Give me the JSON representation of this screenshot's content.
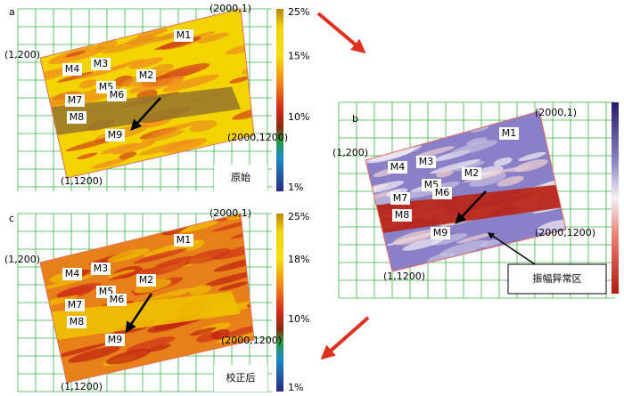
{
  "panels": [
    {
      "label": "a",
      "corners": [
        "(2000,1)",
        "(1,200)",
        "(2000,1200)",
        "(1,1200)"
      ],
      "wells": [
        "M1",
        "M2",
        "M3",
        "M4",
        "M5",
        "M6",
        "M7",
        "M8",
        "M9"
      ],
      "colorbar_ticks": [
        "25%",
        "15%",
        "10%",
        "1%"
      ],
      "caption": "原始"
    },
    {
      "label": "b",
      "corners": [
        "(2000,1)",
        "(1,200)",
        "(2000,1200)",
        "(1,1200)"
      ],
      "wells": [
        "M1",
        "M2",
        "M3",
        "M4",
        "M5",
        "M6",
        "M7",
        "M8",
        "M9"
      ],
      "caption": "振幅异常区"
    },
    {
      "label": "c",
      "corners": [
        "(2000,1)",
        "(1,200)",
        "(2000,1200)",
        "(1,1200)"
      ],
      "wells": [
        "M1",
        "M2",
        "M3",
        "M4",
        "M5",
        "M6",
        "M7",
        "M8",
        "M9"
      ],
      "colorbar_ticks": [
        "25%",
        "18%",
        "10%",
        "1%"
      ],
      "caption": "校正后"
    }
  ]
}
